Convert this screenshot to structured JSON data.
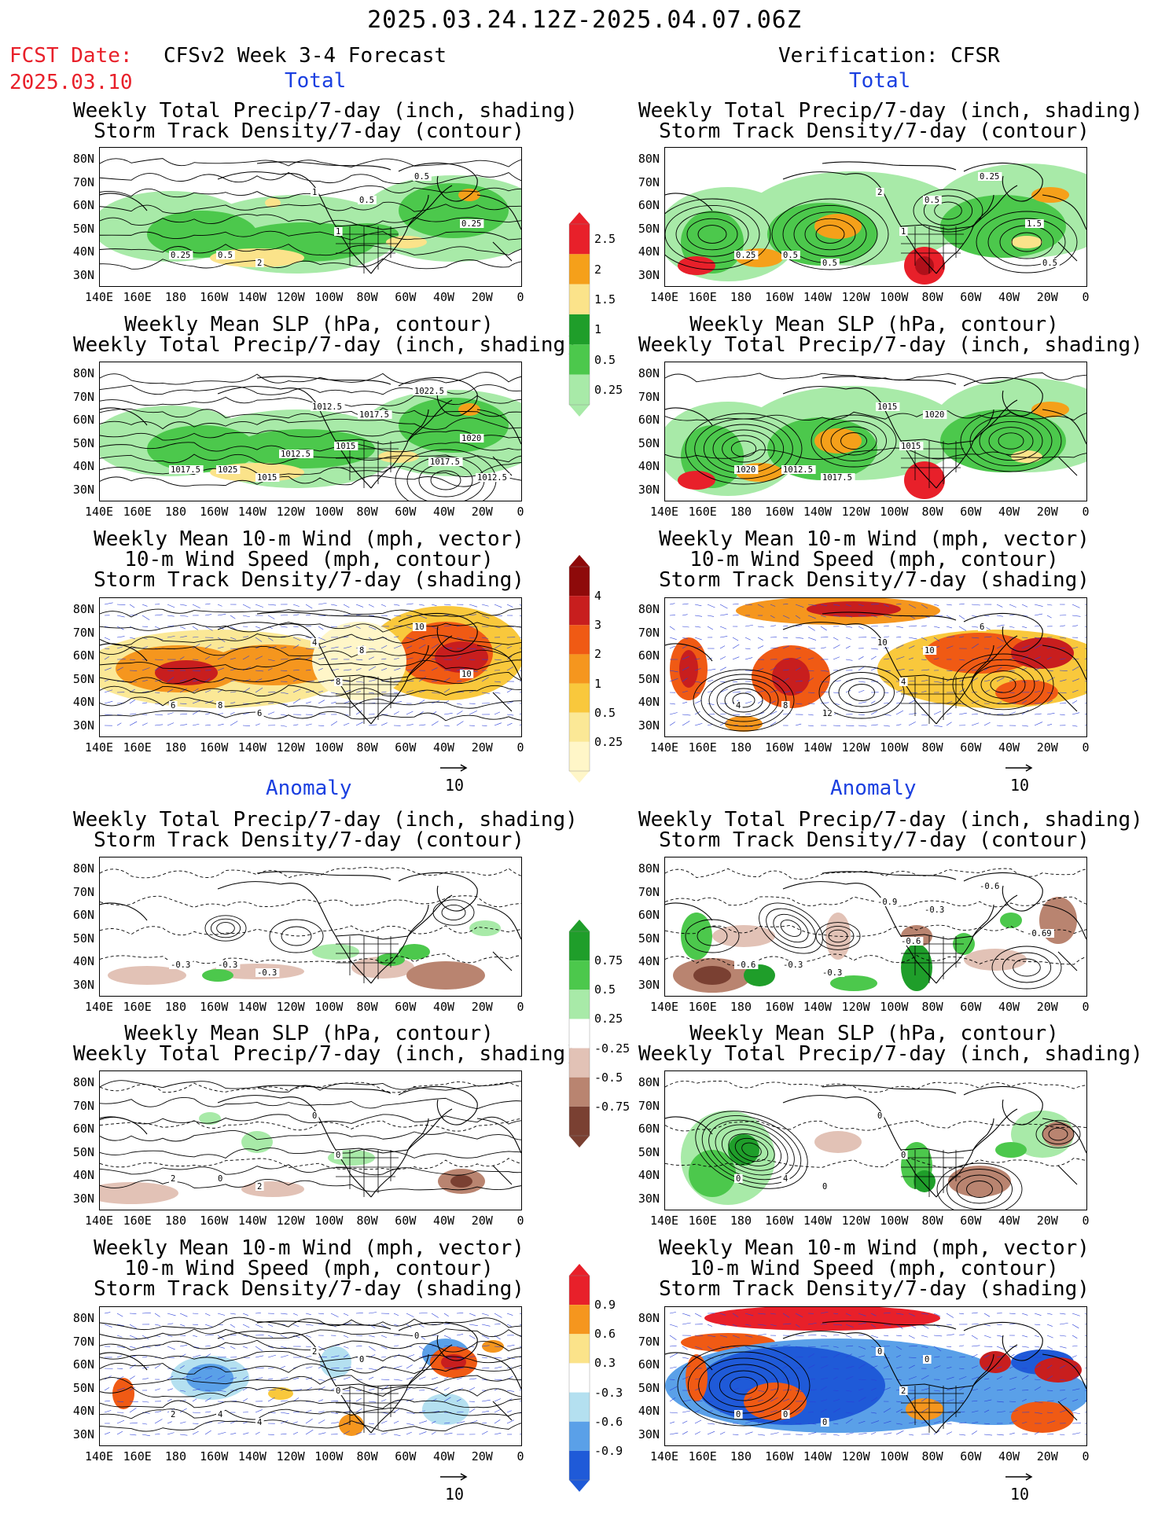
{
  "header": {
    "date_range": "2025.03.24.12Z-2025.04.07.06Z",
    "fcst_label": "FCST Date:",
    "fcst_date": "2025.03.10",
    "left_title": "CFSv2 Week 3-4 Forecast",
    "right_title": "Verification: CFSR",
    "section_total": "Total",
    "section_anomaly": "Anomaly"
  },
  "axes": {
    "lat_ticks": [
      "80N",
      "70N",
      "60N",
      "50N",
      "40N",
      "30N"
    ],
    "lon_ticks": [
      "140E",
      "160E",
      "180",
      "160W",
      "140W",
      "120W",
      "100W",
      "80W",
      "60W",
      "40W",
      "20W",
      "0"
    ]
  },
  "panel_titles": {
    "precip_storm": [
      "Weekly Total Precip/7-day (inch, shading)",
      "Storm Track Density/7-day (contour)"
    ],
    "slp_precip": [
      "Weekly Mean SLP (hPa, contour)",
      "Weekly Total Precip/7-day (inch, shading)"
    ],
    "wind_storm": [
      "Weekly Mean 10-m Wind (mph, vector)",
      "10-m Wind Speed (mph, contour)",
      "Storm Track Density/7-day (shading)"
    ]
  },
  "colorbars": {
    "precip_total": {
      "labels": [
        "2.5",
        "2",
        "1.5",
        "1",
        "0.5",
        "0.25"
      ],
      "colors": [
        "#e8202a",
        "#f5a01a",
        "#fbe38a",
        "#1f9e2a",
        "#4cc84c",
        "#a8eaa8"
      ]
    },
    "storm_total": {
      "labels": [
        "4",
        "3",
        "2",
        "1",
        "0.5",
        "0.25"
      ],
      "colors": [
        "#8e0a0a",
        "#c81e1e",
        "#f05a14",
        "#f5961e",
        "#f9c83c",
        "#fbe896",
        "#fff6c8"
      ]
    },
    "precip_anom": {
      "labels": [
        "0.75",
        "0.5",
        "0.25",
        "-0.25",
        "-0.5",
        "-0.75"
      ],
      "colors": [
        "#1f9e2a",
        "#4cc84c",
        "#a8eaa8",
        "#ffffff",
        "#e2c2b6",
        "#b98470",
        "#7a4032"
      ]
    },
    "storm_anom": {
      "labels": [
        "0.9",
        "0.6",
        "0.3",
        "-0.3",
        "-0.6",
        "-0.9"
      ],
      "colors": [
        "#e8202a",
        "#f5961e",
        "#fbe38a",
        "#ffffff",
        "#b4e0f0",
        "#5aa0e8",
        "#1f5ad8"
      ]
    }
  },
  "vector_ref": "10",
  "contour_labels": {
    "ltl": [
      "0.25",
      "0.5",
      "2",
      "1",
      "1",
      "0.5",
      "0.5",
      "0.25"
    ],
    "rtl": [
      "0.25",
      "0.5",
      "0.5",
      "2",
      "1",
      "0.5",
      "0.25",
      "1.5",
      "0.5"
    ],
    "ltm": [
      "1017.5",
      "1025",
      "1015",
      "1012.5",
      "1015",
      "1017.5",
      "1022.5",
      "1020",
      "1012.5",
      "1017.5",
      "1012.5"
    ],
    "rtm": [
      "1020",
      "1012.5",
      "1017.5",
      "1015",
      "1015",
      "1020"
    ],
    "ltb": [
      "6",
      "8",
      "6",
      "4",
      "8",
      "8",
      "10",
      "10"
    ],
    "rtb": [
      "4",
      "8",
      "12",
      "10",
      "4",
      "10",
      "6"
    ],
    "lal": [
      "-0.3",
      "-0.3",
      "-0.3"
    ],
    "ral": [
      "-0.6",
      "-0.3",
      "-0.3",
      "-0.9",
      "-0.6",
      "-0.3",
      "-0.6",
      "-0.69"
    ],
    "lam": [
      "2",
      "0",
      "2",
      "0",
      "0"
    ],
    "ram": [
      "0",
      "4",
      "0",
      "0",
      "0"
    ],
    "lab": [
      "2",
      "4",
      "4",
      "2",
      "0",
      "0",
      "0"
    ],
    "rab": [
      "0",
      "0",
      "0",
      "0",
      "2",
      "0"
    ]
  }
}
